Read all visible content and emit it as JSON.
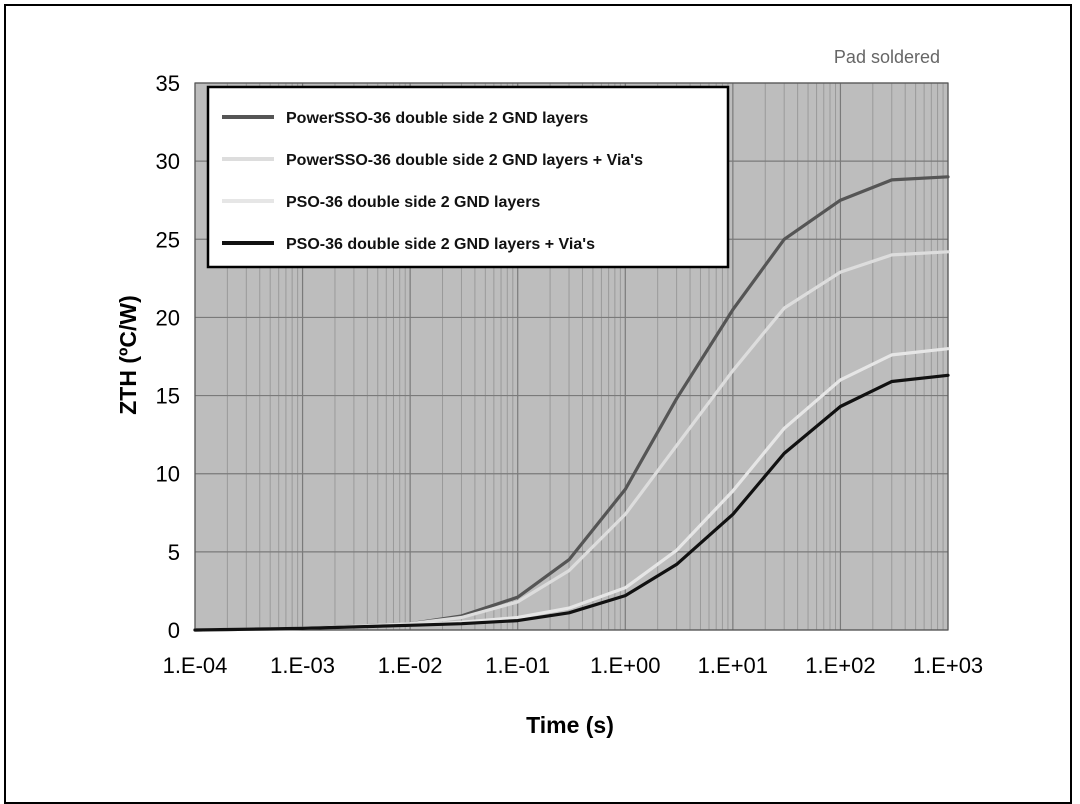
{
  "chart_data": {
    "type": "line",
    "title": "",
    "annotation": "Pad soldered",
    "xlabel": "Time (s)",
    "ylabel": "ZTH (ºC/W)",
    "xscale": "log",
    "xlim": [
      0.0001,
      1000
    ],
    "ylim": [
      0,
      35
    ],
    "x_tick_labels": [
      "1.E-04",
      "1.E-03",
      "1.E-02",
      "1.E-01",
      "1.E+00",
      "1.E+01",
      "1.E+02",
      "1.E+03"
    ],
    "y_ticks": [
      0,
      5,
      10,
      15,
      20,
      25,
      30,
      35
    ],
    "grid": true,
    "plot_background": "#bdbdbd",
    "legend_position": "top-left",
    "x": [
      0.0001,
      0.001,
      0.01,
      0.03,
      0.1,
      0.3,
      1,
      3,
      10,
      30,
      100,
      300,
      1000
    ],
    "series": [
      {
        "name": "PowerSSO-36 double side 2 GND layers",
        "color": "#555555",
        "values": [
          0.0,
          0.1,
          0.4,
          0.9,
          2.1,
          4.5,
          9.0,
          14.8,
          20.5,
          25.0,
          27.5,
          28.8,
          29.0
        ]
      },
      {
        "name": "PowerSSO-36 double side 2 GND layers + Via's",
        "color": "#dddddd",
        "values": [
          0.0,
          0.1,
          0.4,
          0.8,
          1.8,
          3.8,
          7.4,
          11.8,
          16.6,
          20.6,
          22.9,
          24.0,
          24.2
        ]
      },
      {
        "name": "PSO-36 double side 2 GND layers",
        "color": "#e6e6e6",
        "values": [
          0.0,
          0.1,
          0.3,
          0.5,
          0.8,
          1.4,
          2.7,
          5.1,
          8.9,
          12.9,
          16.0,
          17.6,
          18.0
        ]
      },
      {
        "name": "PSO-36 double side 2 GND layers + Via's",
        "color": "#111111",
        "values": [
          0.0,
          0.1,
          0.3,
          0.4,
          0.6,
          1.1,
          2.2,
          4.2,
          7.4,
          11.3,
          14.3,
          15.9,
          16.3
        ]
      }
    ]
  }
}
